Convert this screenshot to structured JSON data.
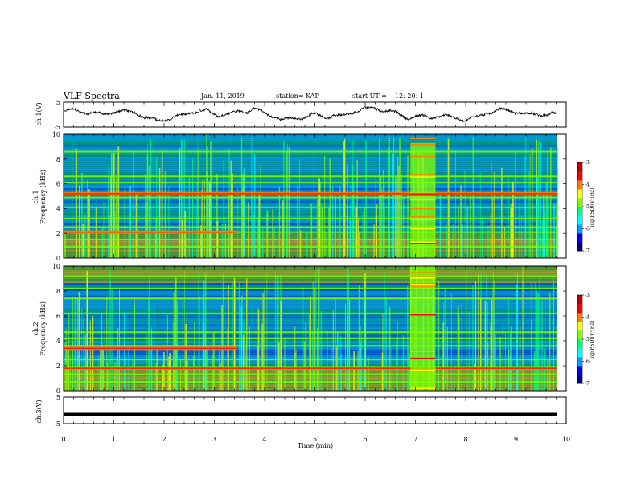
{
  "header": {
    "title": "VLF Spectra",
    "date": "Jan. 11, 2019",
    "station": "station= KAP",
    "start_label": "start  UT =",
    "start_time": "12: 20: 1"
  },
  "chart_data": [
    {
      "id": "ch1-waveform",
      "type": "line",
      "ylabel": "ch.1(V)",
      "ylim": [
        -5,
        5
      ],
      "yticks": [
        "5",
        "-5"
      ],
      "xlim": [
        0,
        10
      ],
      "series_hint": "noisy oscillating signal, roughly between -3 and +3 V",
      "color": "#000000"
    },
    {
      "id": "ch1-spectrogram",
      "type": "heatmap",
      "xlabel": "",
      "ylabel_top": "ch.1",
      "ylabel": "Frequency (kHz)",
      "ylim": [
        0,
        10
      ],
      "yticks": [
        "0",
        "2",
        "4",
        "6",
        "8",
        "10"
      ],
      "xlim": [
        0,
        10
      ],
      "bands_kHz": [
        0.9,
        1.5,
        2.1,
        2.5,
        3.2,
        4.1,
        4.9,
        5.2,
        6.1,
        6.6,
        8.6
      ],
      "hot_bands_kHz": [
        2.1,
        5.2
      ],
      "burst_window_min": [
        6.9,
        7.4
      ],
      "colorbar": {
        "label": "log(PSD)(V²/Hz)",
        "ticks": [
          "-3",
          "-4",
          "-5",
          "-6",
          "-7"
        ],
        "range": [
          -7,
          -3
        ]
      }
    },
    {
      "id": "ch2-spectrogram",
      "type": "heatmap",
      "xlabel": "",
      "ylabel_top": "ch.2",
      "ylabel": "Frequency (kHz)",
      "ylim": [
        0,
        10
      ],
      "yticks": [
        "0",
        "2",
        "4",
        "6",
        "8",
        "10"
      ],
      "xlim": [
        0,
        10
      ],
      "bands_kHz": [
        0.7,
        1.3,
        1.9,
        2.5,
        3.6,
        4.2,
        4.7,
        6.2,
        7.4,
        8.2,
        9.2
      ],
      "hot_bands_kHz": [
        3.4,
        1.8
      ],
      "burst_window_min": [
        6.9,
        7.4
      ],
      "colorbar": {
        "label": "log(PSD)(V²/Hz)",
        "ticks": [
          "-3",
          "-4",
          "-5",
          "-6",
          "-7"
        ],
        "range": [
          -7,
          -3
        ]
      }
    },
    {
      "id": "ch3-waveform",
      "type": "line",
      "ylabel": "ch.3(V)",
      "xlabel": "Time  (min)",
      "ylim": [
        -5,
        5
      ],
      "yticks": [
        "5",
        "-5"
      ],
      "xlim": [
        0,
        10
      ],
      "xticks": [
        "0",
        "1",
        "2",
        "3",
        "4",
        "5",
        "6",
        "7",
        "8",
        "9",
        "10"
      ],
      "level": -1.5,
      "color": "#000000"
    }
  ],
  "colors": {
    "axis": "#000000",
    "background_spectrum": "#00008b",
    "colormap": [
      "#000080",
      "#0000ff",
      "#00a0ff",
      "#00ffff",
      "#00ff80",
      "#80ff00",
      "#ffff00",
      "#ff8000",
      "#ff0000",
      "#c00000"
    ]
  }
}
